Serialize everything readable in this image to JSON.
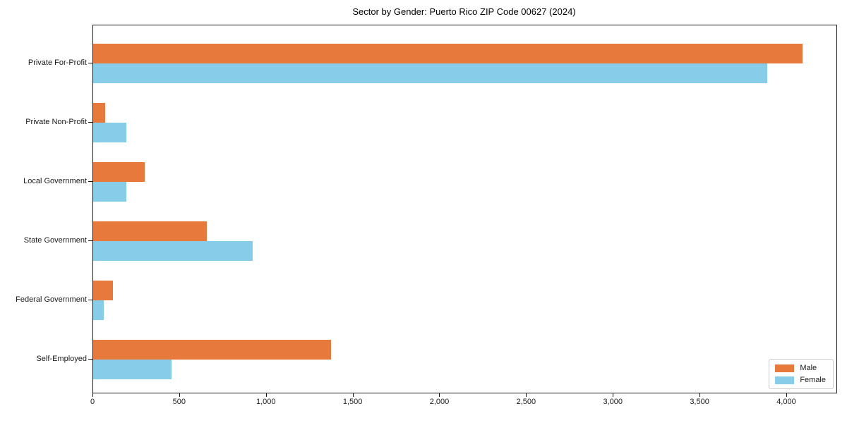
{
  "chart_data": {
    "type": "bar",
    "orientation": "horizontal",
    "title": "Sector by Gender: Puerto Rico ZIP Code 00627 (2024)",
    "categories": [
      "Private For-Profit",
      "Private Non-Profit",
      "Local Government",
      "State Government",
      "Federal Government",
      "Self-Employed"
    ],
    "series": [
      {
        "name": "Male",
        "color": "#e8793d",
        "values": [
          4090,
          70,
          298,
          655,
          112,
          1370
        ]
      },
      {
        "name": "Female",
        "color": "#87cde9",
        "values": [
          3885,
          192,
          192,
          920,
          60,
          450
        ]
      }
    ],
    "xlabel": "",
    "ylabel": "",
    "xlim": [
      0,
      4285
    ],
    "x_ticks": [
      0,
      500,
      1000,
      1500,
      2000,
      2500,
      3000,
      3500,
      4000
    ],
    "x_tick_labels": [
      "0",
      "500",
      "1,000",
      "1,500",
      "2,000",
      "2,500",
      "3,000",
      "3,500",
      "4,000"
    ],
    "grid": false,
    "legend": {
      "position": "lower right",
      "items": [
        {
          "label": "Male",
          "color": "#e8793d"
        },
        {
          "label": "Female",
          "color": "#87cde9"
        }
      ]
    }
  },
  "colors": {
    "axis": "#1a1a1a",
    "background": "#ffffff",
    "legend_border": "#cccccc"
  }
}
